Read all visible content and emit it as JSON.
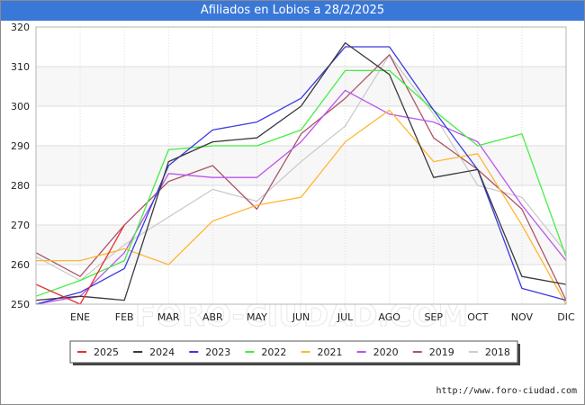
{
  "title": "Afiliados en Lobios a 28/2/2025",
  "footer_url": "http://www.foro-ciudad.com",
  "watermark": "FORO-CIUDAD.COM",
  "chart_data": {
    "type": "line",
    "title": "Afiliados en Lobios a 28/2/2025",
    "categories": [
      "",
      "ENE",
      "FEB",
      "MAR",
      "ABR",
      "MAY",
      "JUN",
      "JUL",
      "AGO",
      "SEP",
      "OCT",
      "NOV",
      "DIC"
    ],
    "ylim": [
      250,
      320
    ],
    "yticks": [
      250,
      260,
      270,
      280,
      290,
      300,
      310,
      320
    ],
    "grid": true,
    "legend_position": "bottom",
    "series": [
      {
        "name": "2025",
        "color": "#e83030",
        "values": [
          255,
          250,
          270,
          null,
          null,
          null,
          null,
          null,
          null,
          null,
          null,
          null,
          null
        ]
      },
      {
        "name": "2024",
        "color": "#3a3a3a",
        "values": [
          251,
          252,
          251,
          286,
          291,
          292,
          300,
          316,
          308,
          282,
          284,
          257,
          255
        ]
      },
      {
        "name": "2023",
        "color": "#3a3ae0",
        "values": [
          250,
          253,
          259,
          285,
          294,
          296,
          302,
          315,
          315,
          299,
          284,
          254,
          251
        ]
      },
      {
        "name": "2022",
        "color": "#44ee44",
        "values": [
          252,
          256,
          261,
          289,
          290,
          290,
          294,
          309,
          309,
          299,
          290,
          293,
          262
        ]
      },
      {
        "name": "2021",
        "color": "#ffb733",
        "values": [
          261,
          261,
          264,
          260,
          271,
          275,
          277,
          291,
          299,
          286,
          288,
          270,
          250
        ]
      },
      {
        "name": "2020",
        "color": "#bb55ee",
        "values": [
          250,
          252,
          263,
          283,
          282,
          282,
          291,
          304,
          298,
          296,
          291,
          275,
          261
        ]
      },
      {
        "name": "2019",
        "color": "#aa5566",
        "values": [
          263,
          257,
          270,
          281,
          285,
          274,
          293,
          302,
          313,
          292,
          284,
          274,
          251
        ]
      },
      {
        "name": "2018",
        "color": "#cccccc",
        "values": [
          262,
          256,
          265,
          272,
          279,
          276,
          286,
          295,
          313,
          298,
          280,
          277,
          263
        ]
      }
    ]
  }
}
